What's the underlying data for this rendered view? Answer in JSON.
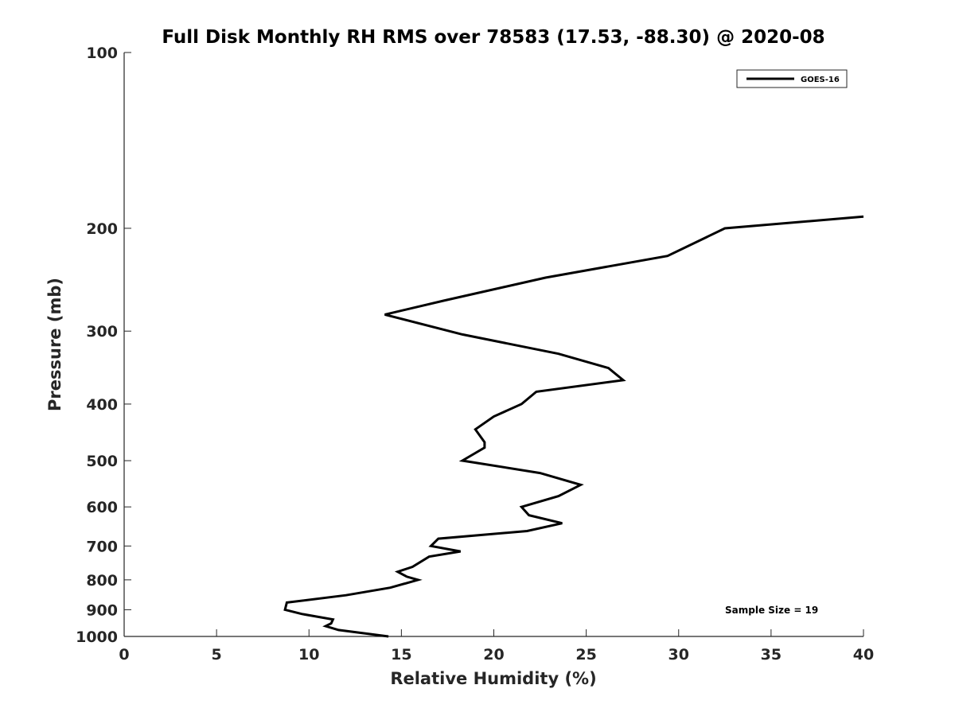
{
  "chart_data": {
    "type": "line",
    "title": "Full Disk Monthly RH RMS over 78583 (17.53, -88.30) @ 2020-08",
    "xlabel": "Relative Humidity (%)",
    "ylabel": "Pressure (mb)",
    "xlim": [
      0,
      40
    ],
    "ylim": [
      100,
      1000
    ],
    "y_scale": "log",
    "y_reversed": true,
    "xticks": [
      0,
      5,
      10,
      15,
      20,
      25,
      30,
      35,
      40
    ],
    "yticks": [
      100,
      200,
      300,
      400,
      500,
      600,
      700,
      800,
      900,
      1000
    ],
    "grid": false,
    "legend": {
      "position": "top-right",
      "entries": [
        "GOES-16"
      ]
    },
    "annotation": "Sample Size = 19",
    "series": [
      {
        "name": "GOES-16",
        "color": "#000000",
        "points": [
          [
            40.0,
            191
          ],
          [
            32.5,
            200
          ],
          [
            29.4,
            223
          ],
          [
            22.8,
            243
          ],
          [
            17.3,
            266
          ],
          [
            14.1,
            281
          ],
          [
            18.3,
            304
          ],
          [
            23.5,
            328
          ],
          [
            26.2,
            347
          ],
          [
            27.0,
            364
          ],
          [
            22.3,
            381
          ],
          [
            21.5,
            400
          ],
          [
            20.0,
            420
          ],
          [
            19.0,
            442
          ],
          [
            19.5,
            465
          ],
          [
            19.5,
            475
          ],
          [
            18.3,
            500
          ],
          [
            22.5,
            525
          ],
          [
            24.7,
            550
          ],
          [
            23.5,
            575
          ],
          [
            21.5,
            600
          ],
          [
            21.9,
            620
          ],
          [
            23.7,
            640
          ],
          [
            21.8,
            660
          ],
          [
            17.0,
            680
          ],
          [
            16.6,
            700
          ],
          [
            18.2,
            715
          ],
          [
            16.5,
            730
          ],
          [
            15.6,
            760
          ],
          [
            14.8,
            775
          ],
          [
            15.3,
            790
          ],
          [
            15.9,
            800
          ],
          [
            14.4,
            825
          ],
          [
            12.0,
            850
          ],
          [
            8.8,
            875
          ],
          [
            8.7,
            900
          ],
          [
            9.6,
            915
          ],
          [
            11.3,
            935
          ],
          [
            11.2,
            950
          ],
          [
            10.9,
            960
          ],
          [
            11.6,
            975
          ],
          [
            14.3,
            1000
          ]
        ]
      }
    ]
  }
}
